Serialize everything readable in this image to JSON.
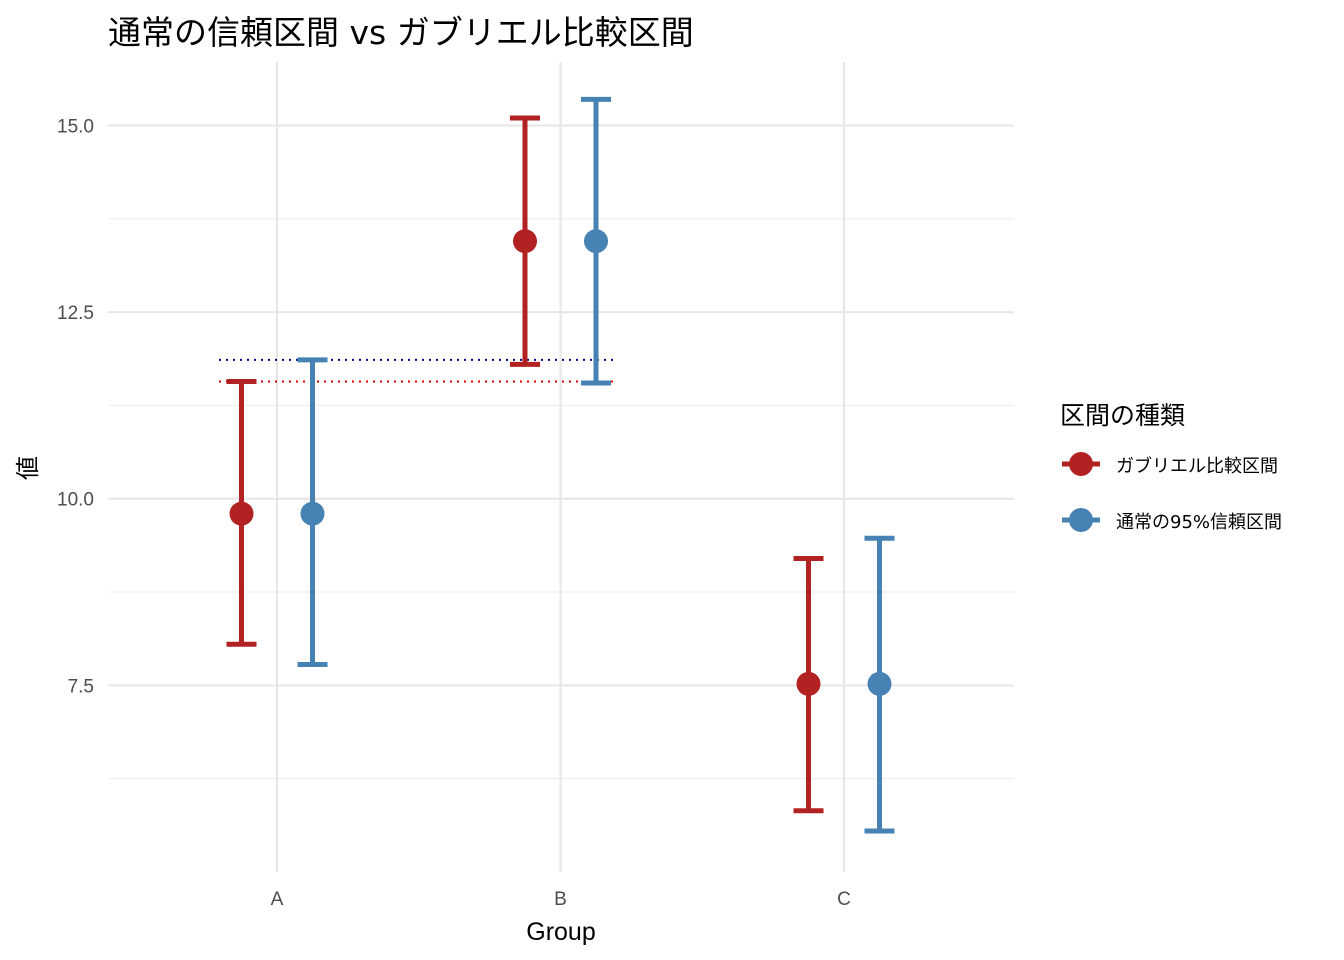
{
  "chart_data": {
    "type": "errorbar",
    "title": "通常の信頼区間 vs ガブリエル比較区間",
    "xlabel": "Group",
    "ylabel": "値",
    "categories": [
      "A",
      "B",
      "C"
    ],
    "y_ticks": [
      7.5,
      10.0,
      12.5,
      15.0
    ],
    "y_tick_labels": [
      "7.5",
      "10.0",
      "12.5",
      "15.0"
    ],
    "ylim": [
      5.0,
      15.85
    ],
    "grid": true,
    "legend": {
      "title": "区間の種類",
      "position": "right"
    },
    "series": [
      {
        "name": "ガブリエル比較区間",
        "color": "#B22222",
        "points": [
          {
            "x": "A",
            "y": 9.8,
            "lower": 8.05,
            "upper": 11.57
          },
          {
            "x": "B",
            "y": 13.45,
            "lower": 11.8,
            "upper": 15.1
          },
          {
            "x": "C",
            "y": 7.52,
            "lower": 5.82,
            "upper": 9.2
          }
        ]
      },
      {
        "name": "通常の95%信頼区間",
        "color": "#4682B4",
        "points": [
          {
            "x": "A",
            "y": 9.8,
            "lower": 7.78,
            "upper": 11.86
          },
          {
            "x": "B",
            "y": 13.45,
            "lower": 11.55,
            "upper": 15.35
          },
          {
            "x": "C",
            "y": 7.52,
            "lower": 5.55,
            "upper": 9.47
          }
        ]
      }
    ],
    "reference_lines": [
      {
        "y": 11.86,
        "from": "A",
        "to": "B",
        "color": "#00008B",
        "style": "dotted"
      },
      {
        "y": 11.57,
        "from": "A",
        "to": "B",
        "color": "#E00000",
        "style": "dotted"
      }
    ]
  }
}
